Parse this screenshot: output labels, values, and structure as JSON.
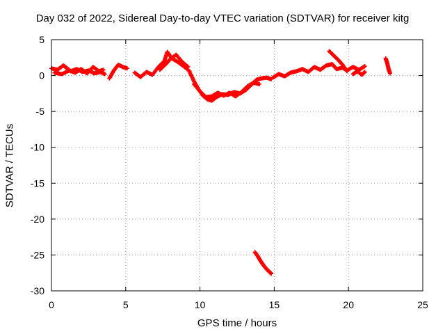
{
  "chart_data": {
    "type": "scatter",
    "title": "Day 032 of 2022, Sidereal Day-to-day VTEC variation (SDTVAR) for receiver kitg",
    "xlabel": "GPS time / hours",
    "ylabel": "SDTVAR / TECUs",
    "xlim": [
      0,
      25
    ],
    "ylim": [
      -30,
      5
    ],
    "xticks": [
      0,
      5,
      10,
      15,
      20,
      25
    ],
    "yticks": [
      -30,
      -25,
      -20,
      -15,
      -10,
      -5,
      0,
      5
    ],
    "grid": true,
    "marker": "plus",
    "series_color": "#ff0000",
    "series": [
      {
        "name": "SDTVAR",
        "segments": [
          {
            "x": [
              0.0,
              0.4,
              0.8,
              1.0,
              1.3,
              1.7,
              2.1,
              2.5,
              2.9,
              3.3,
              3.6
            ],
            "y": [
              1.0,
              0.8,
              1.4,
              1.1,
              0.6,
              0.9,
              0.5,
              0.7,
              0.3,
              0.5,
              0.2
            ]
          },
          {
            "x": [
              0.2,
              0.7,
              1.2,
              1.6,
              2.0,
              2.4,
              2.8,
              3.2,
              3.5
            ],
            "y": [
              0.4,
              0.2,
              0.7,
              0.4,
              0.9,
              0.3,
              1.2,
              0.6,
              0.8
            ]
          },
          {
            "x": [
              3.9,
              4.2,
              4.5,
              4.8,
              5.1
            ],
            "y": [
              -0.4,
              0.7,
              1.5,
              1.2,
              1.0
            ]
          },
          {
            "x": [
              5.6,
              6.0,
              6.4,
              6.8,
              7.2,
              7.6,
              7.8,
              8.1,
              8.5,
              8.9,
              9.3
            ],
            "y": [
              0.4,
              -0.2,
              0.5,
              0.1,
              1.2,
              2.0,
              3.3,
              2.4,
              1.9,
              1.3,
              0.6
            ]
          },
          {
            "x": [
              7.3,
              7.7,
              8.0,
              8.4,
              8.8,
              9.2
            ],
            "y": [
              0.8,
              1.6,
              2.3,
              2.9,
              1.9,
              1.2
            ]
          },
          {
            "x": [
              9.3,
              9.6,
              9.9,
              10.2,
              10.5,
              10.8,
              11.1,
              11.5,
              11.9,
              12.3,
              12.7,
              13.1,
              13.5,
              13.8,
              14.1,
              14.5,
              14.8
            ],
            "y": [
              0.5,
              -0.8,
              -1.9,
              -2.8,
              -3.3,
              -3.5,
              -3.0,
              -2.6,
              -2.7,
              -2.3,
              -2.5,
              -2.0,
              -1.2,
              -0.6,
              -0.4,
              -0.3,
              -0.5
            ]
          },
          {
            "x": [
              9.6,
              10.0,
              10.4,
              10.8,
              11.2,
              11.6,
              12.0,
              12.4,
              12.8,
              13.2,
              13.6,
              14.0
            ],
            "y": [
              -1.2,
              -2.2,
              -3.0,
              -2.9,
              -2.4,
              -2.8,
              -2.4,
              -2.9,
              -2.3,
              -1.5,
              -1.0,
              -1.2
            ]
          },
          {
            "x": [
              14.9,
              15.3,
              15.7,
              16.1,
              16.5,
              16.9,
              17.3,
              17.7,
              18.1,
              18.5,
              18.9,
              19.2,
              19.6,
              19.9,
              20.3,
              20.7,
              21.1
            ],
            "y": [
              -0.3,
              0.2,
              -0.1,
              0.4,
              0.6,
              0.9,
              0.5,
              1.2,
              0.8,
              1.4,
              1.6,
              0.9,
              1.1,
              0.7,
              1.2,
              0.8,
              1.3
            ]
          },
          {
            "x": [
              18.7,
              19.0,
              19.3,
              19.6,
              19.9
            ],
            "y": [
              3.4,
              2.8,
              2.2,
              1.5,
              0.6
            ]
          },
          {
            "x": [
              20.3,
              20.6,
              20.9,
              21.1
            ],
            "y": [
              0.2,
              0.6,
              0.1,
              0.5
            ]
          },
          {
            "x": [
              22.5,
              22.6,
              22.7,
              22.8
            ],
            "y": [
              2.4,
              1.8,
              0.9,
              0.3
            ]
          },
          {
            "x": [
              13.7,
              13.9,
              14.1,
              14.3,
              14.5,
              14.7,
              14.8
            ],
            "y": [
              -24.6,
              -25.2,
              -25.9,
              -26.5,
              -27.0,
              -27.4,
              -27.6
            ]
          }
        ]
      }
    ]
  }
}
